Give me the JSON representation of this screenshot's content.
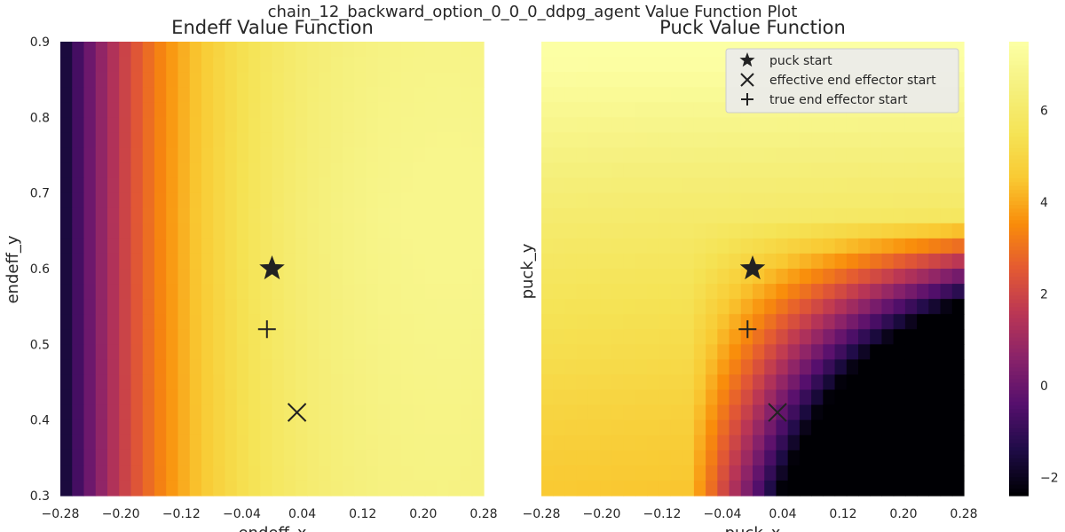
{
  "figure": {
    "suptitle": "chain_12_backward_option_0_0_0_ddpg_agent Value Function Plot"
  },
  "chart_data": [
    {
      "type": "heatmap",
      "title": "Endeff Value Function",
      "xlabel": "endeff_x",
      "ylabel": "endeff_y",
      "xlim": [
        -0.28,
        0.28
      ],
      "ylim": [
        0.3,
        0.9
      ],
      "xticks": [
        "−0.28",
        "−0.20",
        "−0.12",
        "−0.04",
        "0.04",
        "0.12",
        "0.20",
        "0.28"
      ],
      "yticks": [
        "0.3",
        "0.4",
        "0.5",
        "0.6",
        "0.7",
        "0.8",
        "0.9"
      ],
      "markers": [
        {
          "label": "puck start",
          "shape": "star",
          "x": -0.0,
          "y": 0.6
        },
        {
          "label": "true end effector start",
          "shape": "plus",
          "x": -0.0067,
          "y": 0.52
        },
        {
          "label": "effective end effector start",
          "shape": "x",
          "x": 0.033,
          "y": 0.41
        }
      ],
      "grid": false
    },
    {
      "type": "heatmap",
      "title": "Puck Value Function",
      "xlabel": "puck_x",
      "ylabel": "puck_y",
      "xlim": [
        -0.28,
        0.28
      ],
      "ylim": [
        0.3,
        0.9
      ],
      "xticks": [
        "−0.28",
        "−0.20",
        "−0.12",
        "−0.04",
        "0.04",
        "0.12",
        "0.20",
        "0.28"
      ],
      "markers": [
        {
          "label": "puck start",
          "shape": "star",
          "x": -0.0,
          "y": 0.6
        },
        {
          "label": "true end effector start",
          "shape": "plus",
          "x": -0.0067,
          "y": 0.52
        },
        {
          "label": "effective end effector start",
          "shape": "x",
          "x": 0.033,
          "y": 0.41
        }
      ],
      "legend": {
        "placement": "top-right",
        "entries": [
          "puck start",
          "effective end effector start",
          "true end effector start"
        ]
      },
      "grid": false
    }
  ],
  "colorbar": {
    "colormap": "inferno",
    "vmin": -2.4,
    "vmax": 7.5,
    "ticks": [
      "−2",
      "0",
      "2",
      "4",
      "6"
    ]
  }
}
